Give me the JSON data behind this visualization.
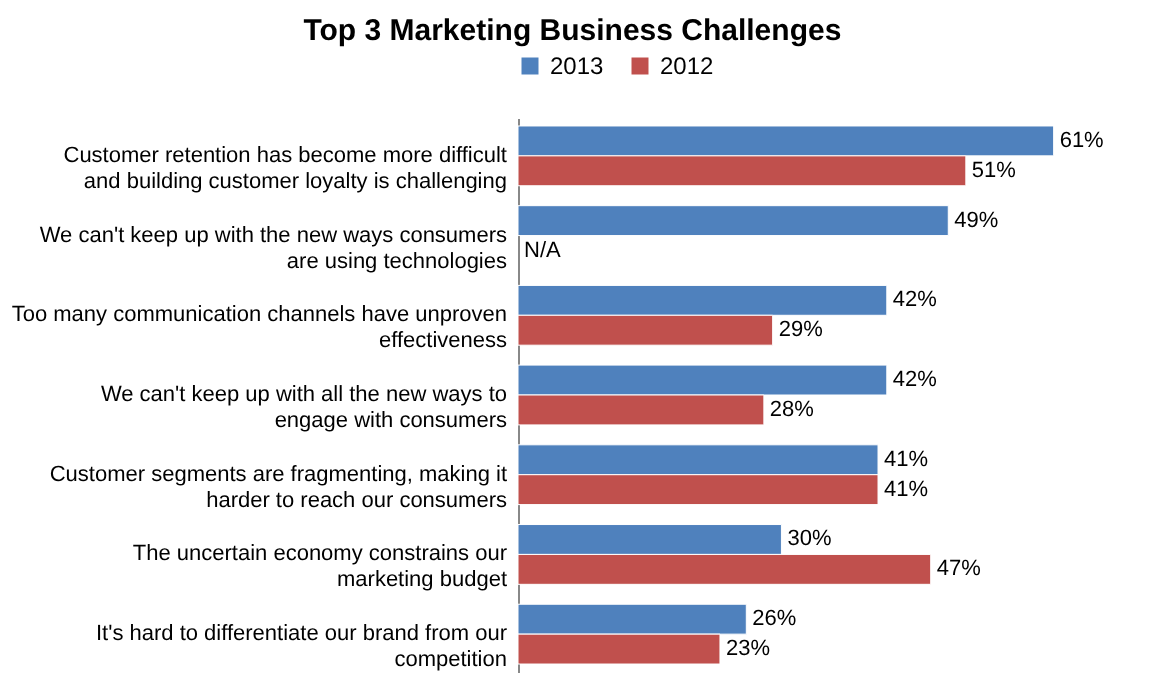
{
  "chart_data": {
    "type": "bar",
    "orientation": "horizontal",
    "title": "Top 3 Marketing Business Challenges",
    "categories": [
      "Customer retention has become more difficult and building customer loyalty is challenging",
      "We can't keep up with the new ways consumers are using technologies",
      "Too many communication channels have unproven effectiveness",
      "We can't keep up with all the new ways to engage with consumers",
      "Customer segments are fragmenting, making it harder to reach our consumers",
      "The uncertain economy constrains our marketing budget",
      "It's hard to differentiate our brand from our competition"
    ],
    "series": [
      {
        "name": "2013",
        "color": "#4f81bd",
        "values": [
          61,
          49,
          42,
          42,
          41,
          30,
          26
        ],
        "value_labels": [
          "61%",
          "49%",
          "42%",
          "42%",
          "41%",
          "30%",
          "26%"
        ]
      },
      {
        "name": "2012",
        "color": "#c0504d",
        "values": [
          51,
          null,
          29,
          28,
          41,
          47,
          23
        ],
        "value_labels": [
          "51%",
          "N/A",
          "29%",
          "28%",
          "41%",
          "47%",
          "23%"
        ]
      }
    ],
    "legend": "top"
  }
}
